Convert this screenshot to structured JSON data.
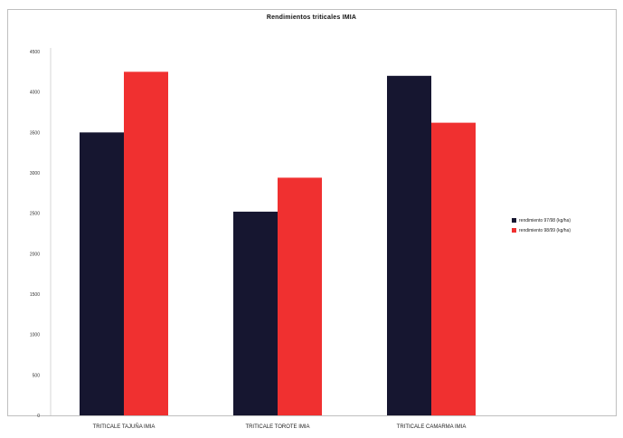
{
  "chart_data": {
    "type": "bar",
    "title": "Rendimientos triticales IMIA",
    "xlabel": "",
    "ylabel": "",
    "categories": [
      "TRITICALE TAJUÑA IMIA",
      "TRITICALE TOROTE IMIA",
      "TRITICALE CAMARMA IMIA"
    ],
    "series": [
      {
        "name": "rendimiento 97/98 (kg/ha)",
        "color": "#161630",
        "values": [
          3500,
          2520,
          4200
        ]
      },
      {
        "name": "rendimiento 98/99 (kg/ha)",
        "color": "#f03030",
        "values": [
          4250,
          2940,
          3620
        ]
      }
    ],
    "ylim": [
      0,
      4500
    ],
    "yticks": [
      0,
      500,
      1000,
      1500,
      2000,
      2500,
      3000,
      3500,
      4000,
      4500
    ],
    "grid": false,
    "legend_position": "right"
  }
}
